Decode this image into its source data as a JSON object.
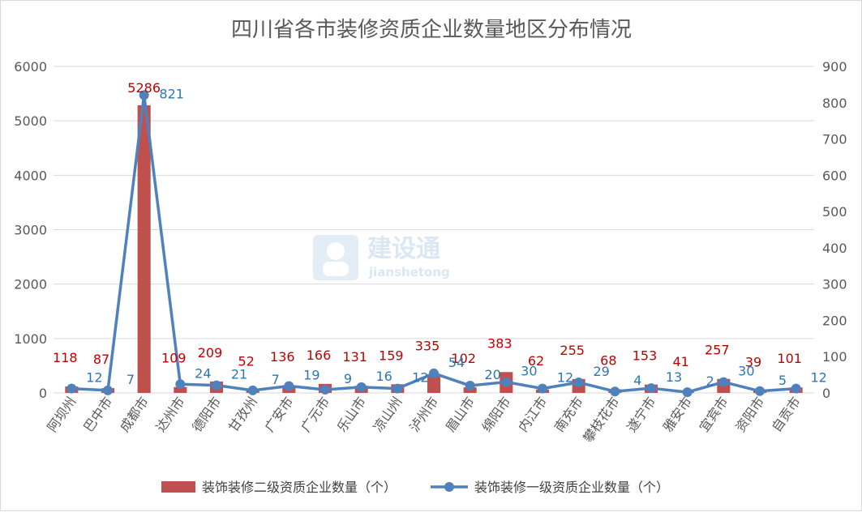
{
  "watermark": {
    "brand": "建设通",
    "sub": "jianshetong"
  },
  "chart_data": {
    "type": "bar",
    "title": "四川省各市装修资质企业数量地区分布情况",
    "categories": [
      "阿坝州",
      "巴中市",
      "成都市",
      "达州市",
      "德阳市",
      "甘孜州",
      "广安市",
      "广元市",
      "乐山市",
      "凉山州",
      "泸州市",
      "眉山市",
      "绵阳市",
      "内江市",
      "南充市",
      "攀枝花市",
      "遂宁市",
      "雅安市",
      "宜宾市",
      "资阳市",
      "自贡市"
    ],
    "series": [
      {
        "name": "装饰装修二级资质企业数量（个）",
        "type": "bar",
        "axis": "left",
        "color": "#c0504d",
        "values": [
          118,
          87,
          5286,
          109,
          209,
          52,
          136,
          166,
          131,
          159,
          335,
          102,
          383,
          62,
          255,
          68,
          153,
          41,
          257,
          39,
          101
        ]
      },
      {
        "name": "装饰装修一级资质企业数量（个）",
        "type": "line",
        "axis": "right",
        "color": "#4f81bd",
        "values": [
          12,
          7,
          821,
          24,
          21,
          7,
          19,
          9,
          16,
          12,
          54,
          20,
          30,
          12,
          29,
          4,
          13,
          2,
          30,
          5,
          12
        ]
      }
    ],
    "y_left": {
      "min": 0,
      "max": 6000,
      "ticks": [
        0,
        1000,
        2000,
        3000,
        4000,
        5000,
        6000
      ]
    },
    "y_right": {
      "min": 0,
      "max": 900,
      "ticks": [
        0,
        100,
        200,
        300,
        400,
        500,
        600,
        700,
        800,
        900
      ]
    },
    "legend": "bottom",
    "grid": true
  }
}
